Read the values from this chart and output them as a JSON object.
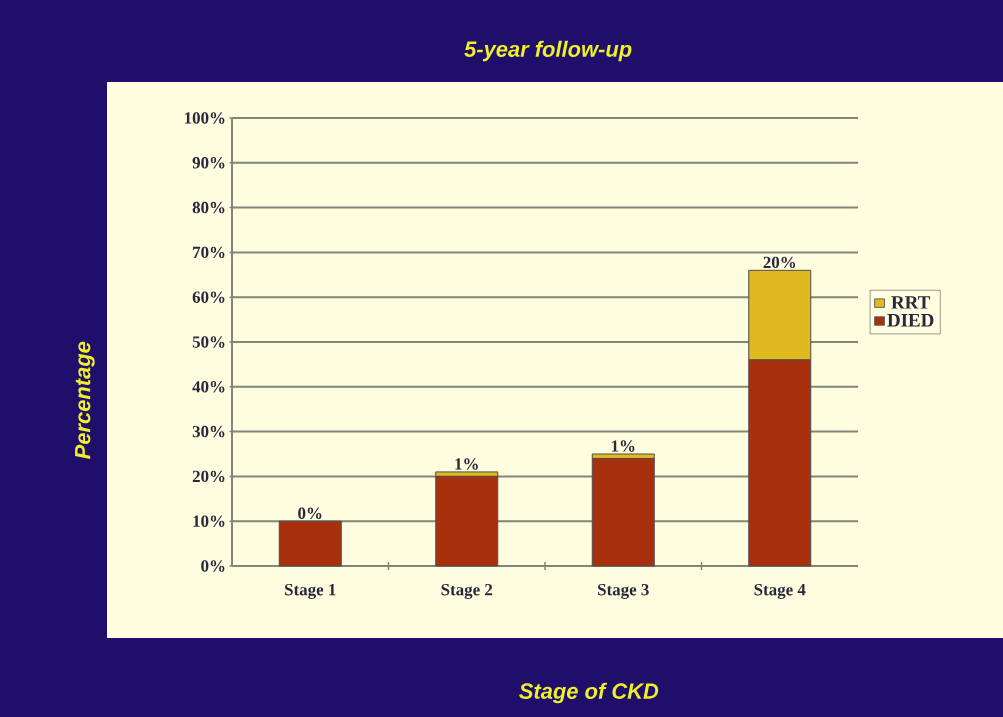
{
  "chart_data": {
    "type": "bar",
    "title": "5-year follow-up",
    "xlabel": "Stage of CKD",
    "ylabel": "Percentage",
    "categories": [
      "Stage 1",
      "Stage 2",
      "Stage 3",
      "Stage 4"
    ],
    "series": [
      {
        "name": "DIED",
        "color": "#a8300c",
        "values": [
          10,
          20,
          24,
          46
        ]
      },
      {
        "name": "RRT",
        "color": "#e0b820",
        "values": [
          0,
          1,
          1,
          20
        ],
        "value_labels": [
          "0%",
          "1%",
          "1%",
          "20%"
        ]
      }
    ],
    "stacked": true,
    "ylim": [
      0,
      100
    ],
    "yticks": [
      {
        "value": 0,
        "label": "0%"
      },
      {
        "value": 10,
        "label": "10%"
      },
      {
        "value": 20,
        "label": "20%"
      },
      {
        "value": 30,
        "label": "30%"
      },
      {
        "value": 40,
        "label": "40%"
      },
      {
        "value": 50,
        "label": "50%"
      },
      {
        "value": 60,
        "label": "60%"
      },
      {
        "value": 70,
        "label": "70%"
      },
      {
        "value": 80,
        "label": "80%"
      },
      {
        "value": 90,
        "label": "90%"
      },
      {
        "value": 100,
        "label": "100%"
      }
    ],
    "grid": "y",
    "legend": "right"
  }
}
